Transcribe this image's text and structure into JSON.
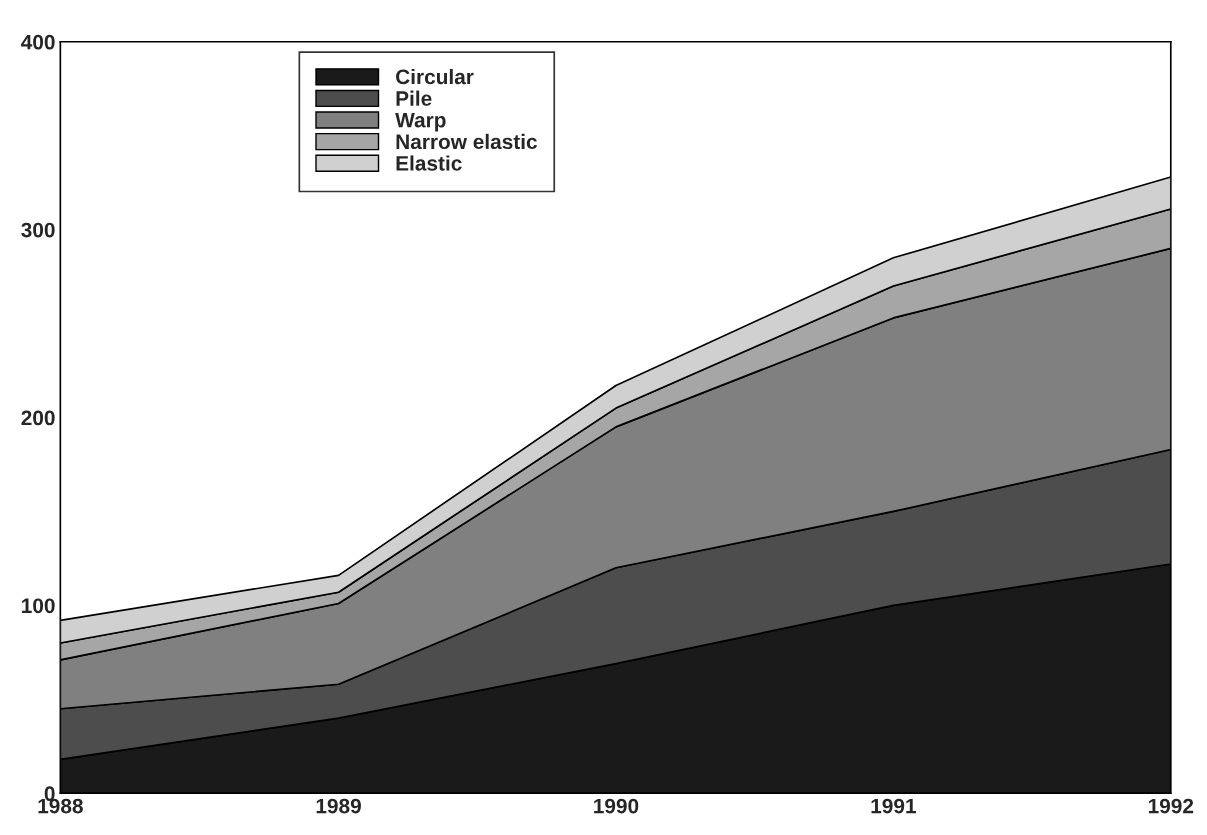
{
  "chart_data": {
    "type": "area",
    "stacked": true,
    "x": [
      "1988",
      "1989",
      "1990",
      "1991",
      "1992"
    ],
    "xlim": [
      "1988",
      "1992"
    ],
    "xticks": [
      "1988",
      "1989",
      "1990",
      "1991",
      "1992"
    ],
    "ylim": [
      0,
      400
    ],
    "yticks": [
      0,
      100,
      200,
      300,
      400
    ],
    "series": [
      {
        "name": "Circular",
        "color": "#1a1a1a",
        "values": [
          18,
          40,
          69,
          100,
          122
        ]
      },
      {
        "name": "Pile",
        "color": "#4d4d4d",
        "values": [
          27,
          18,
          51,
          50,
          61
        ]
      },
      {
        "name": "Warp",
        "color": "#808080",
        "values": [
          26,
          43,
          75,
          103,
          107
        ]
      },
      {
        "name": "Narrow elastic",
        "color": "#a6a6a6",
        "values": [
          9,
          6,
          10,
          17,
          21
        ]
      },
      {
        "name": "Elastic",
        "color": "#d0d0d0",
        "values": [
          12,
          9,
          12,
          15,
          17
        ]
      }
    ],
    "grid": false,
    "legend": "top"
  }
}
